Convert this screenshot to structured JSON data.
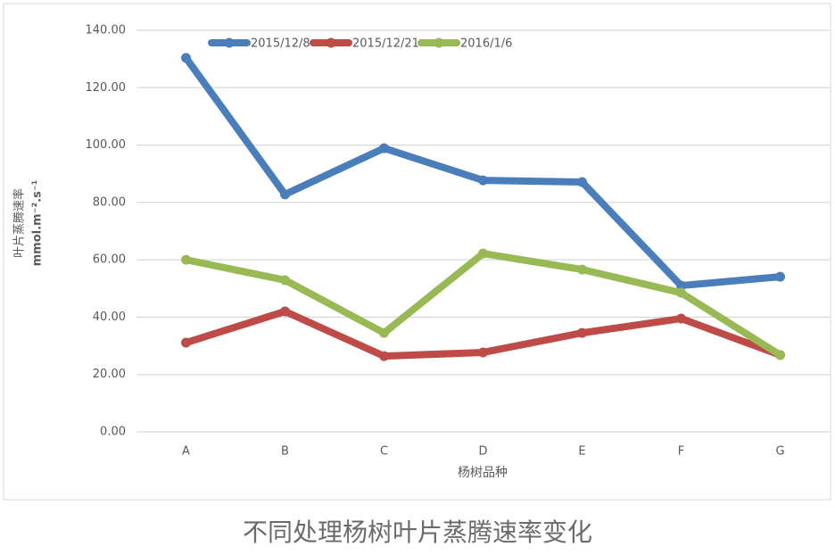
{
  "chart_data": {
    "type": "line",
    "caption": "不同处理杨树叶片蒸腾速率变化",
    "xlabel": "杨树品种",
    "ylabel": [
      "叶片蒸腾速率",
      "mmol.m⁻².s⁻¹"
    ],
    "categories": [
      "A",
      "B",
      "C",
      "D",
      "E",
      "F",
      "G"
    ],
    "series": [
      {
        "name": "2015/12/8",
        "color": "#4a7ebb",
        "values": [
          130.4,
          82.8,
          98.9,
          87.7,
          87.1,
          51.0,
          54.1
        ]
      },
      {
        "name": "2015/12/21",
        "color": "#be4b48",
        "values": [
          31.1,
          42.0,
          26.4,
          27.7,
          34.5,
          39.5,
          26.8
        ]
      },
      {
        "name": "2016/1/6",
        "color": "#98b954",
        "values": [
          60.0,
          52.9,
          34.5,
          62.2,
          56.6,
          48.5,
          26.8
        ]
      }
    ],
    "ylim": [
      0,
      140
    ],
    "yticks": [
      {
        "value": 0,
        "label": "0.00"
      },
      {
        "value": 20,
        "label": "20.00"
      },
      {
        "value": 40,
        "label": "40.00"
      },
      {
        "value": 60,
        "label": "60.00"
      },
      {
        "value": 80,
        "label": "80.00"
      },
      {
        "value": 100,
        "label": "100.00"
      },
      {
        "value": 120,
        "label": "120.00"
      },
      {
        "value": 140,
        "label": "140.00"
      }
    ],
    "grid": true,
    "legend": "top"
  }
}
